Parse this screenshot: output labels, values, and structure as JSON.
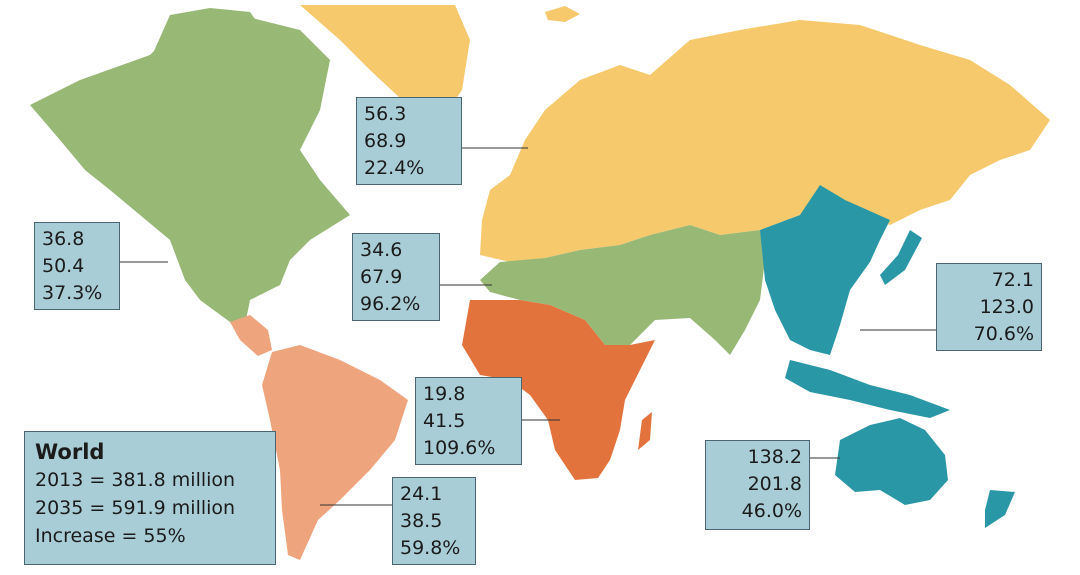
{
  "colors": {
    "ocean": "#ffffff",
    "europe": "#f6c96c",
    "north_america": "#98b876",
    "mena_south_asia": "#98b876",
    "africa": "#e3733c",
    "south_central_america": "#eea47c",
    "western_pacific": "#2a97a6",
    "label_fill": "#a8cdd6",
    "label_border": "#4a6670"
  },
  "regions": [
    {
      "id": "europe",
      "values": [
        "56.3",
        "68.9",
        "22.4%"
      ]
    },
    {
      "id": "north_america",
      "values": [
        "36.8",
        "50.4",
        "37.3%"
      ]
    },
    {
      "id": "mena",
      "values": [
        "34.6",
        "67.9",
        "96.2%"
      ]
    },
    {
      "id": "western_pacific",
      "values": [
        "72.1",
        "123.0",
        "70.6%"
      ]
    },
    {
      "id": "africa",
      "values": [
        "19.8",
        "41.5",
        "109.6%"
      ]
    },
    {
      "id": "south_east_asia",
      "values": [
        "138.2",
        "201.8",
        "46.0%"
      ]
    },
    {
      "id": "south_america",
      "values": [
        "24.1",
        "38.5",
        "59.8%"
      ]
    }
  ],
  "world": {
    "title": "World",
    "line1": "2013 = 381.8 million",
    "line2": "2035 = 591.9 million",
    "line3": "Increase = 55%"
  }
}
